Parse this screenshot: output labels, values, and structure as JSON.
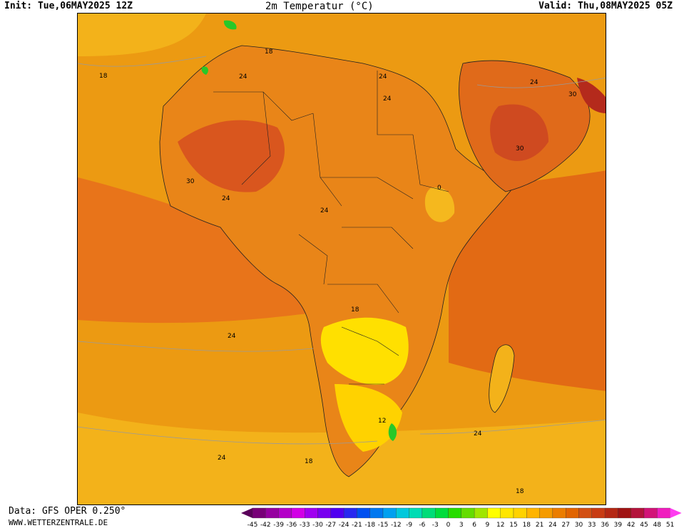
{
  "header": {
    "init": "Init: Tue,06MAY2025 12Z",
    "title": "2m Temperatur (°C)",
    "valid": "Valid: Thu,08MAY2025 05Z"
  },
  "footer": {
    "source": "Data: GFS OPER 0.250°",
    "site": "WWW.WETTERZENTRALE.DE"
  },
  "map": {
    "region": "Africa",
    "isotherm_labels": [
      "18",
      "18",
      "24",
      "24",
      "24",
      "30",
      "30",
      "24",
      "24",
      "30",
      "24",
      "24",
      "24",
      "18",
      "12",
      "24",
      "18",
      "18",
      "18",
      "0"
    ]
  },
  "legend": {
    "ticks": [
      "-45",
      "-42",
      "-39",
      "-36",
      "-33",
      "-30",
      "-27",
      "-24",
      "-21",
      "-18",
      "-15",
      "-12",
      "-9",
      "-6",
      "-3",
      "0",
      "3",
      "6",
      "9",
      "12",
      "15",
      "18",
      "21",
      "24",
      "27",
      "30",
      "33",
      "36",
      "39",
      "42",
      "45",
      "48",
      "51"
    ],
    "colors": [
      "#5a005a",
      "#780078",
      "#9600a0",
      "#b400c8",
      "#d200e6",
      "#a000f0",
      "#7800f0",
      "#5000f0",
      "#2828f0",
      "#0050f0",
      "#0078f0",
      "#00a0f0",
      "#00c8dc",
      "#00dcb4",
      "#00dc78",
      "#00dc3c",
      "#28dc00",
      "#64dc00",
      "#a0e600",
      "#ffff00",
      "#ffe600",
      "#ffd200",
      "#ffb400",
      "#f59b00",
      "#eb7d00",
      "#e16400",
      "#d25014",
      "#c83c14",
      "#b42814",
      "#a01414",
      "#b4143c",
      "#d21478",
      "#f01ebe",
      "#ff3cf0"
    ]
  }
}
